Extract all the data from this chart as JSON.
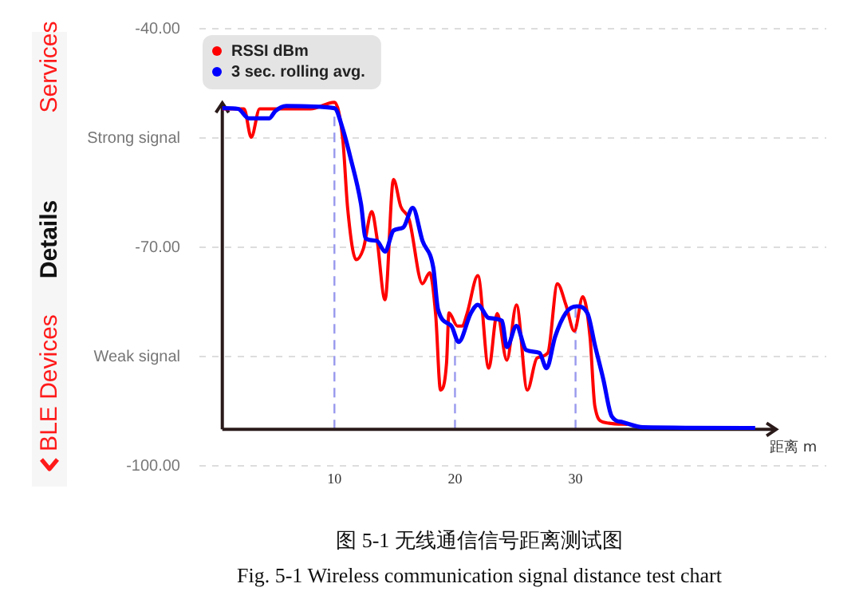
{
  "chart_data": {
    "type": "line",
    "title": "图 5-1  无线通信信号距离测试图",
    "subtitle": "Fig. 5-1 Wireless communication signal distance test chart",
    "xlabel": "距离 m",
    "annotations": [
      "Services",
      "Details",
      "BLE Devices"
    ],
    "xlim": [
      -1.2,
      50.8
    ],
    "xticks": [
      10,
      20,
      30
    ],
    "ylim": [
      -100,
      -40
    ],
    "yticks": [
      {
        "value": -40,
        "label": "-40.00"
      },
      {
        "value": -55,
        "label": "Strong signal"
      },
      {
        "value": -70,
        "label": "-70.00"
      },
      {
        "value": -85,
        "label": "Weak signal"
      },
      {
        "value": -100,
        "label": "-100.00"
      }
    ],
    "grid": "y",
    "legend": "top left",
    "marker": "none",
    "line_style": "solid",
    "ref_lines": [
      {
        "axis": "y",
        "value": -95,
        "label": null,
        "color": "#2a1a1a",
        "line_style": "solid"
      },
      {
        "axis": "x",
        "value": 0.7,
        "label": null,
        "color": "#2a1a1a",
        "line_style": "solid"
      },
      {
        "axis": "x",
        "value": 10,
        "label": null,
        "color": "#9999ee",
        "line_style": "dashed"
      },
      {
        "axis": "x",
        "value": 20,
        "label": null,
        "color": "#9999ee",
        "line_style": "dashed"
      },
      {
        "axis": "x",
        "value": 30,
        "label": null,
        "color": "#9999ee",
        "line_style": "dashed"
      }
    ],
    "series": [
      {
        "name": "RSSI dBm",
        "color": "#ff0000",
        "x": [
          0.7,
          2.5,
          3.1,
          3.8,
          5,
          8,
          10,
          10.7,
          11.1,
          11.8,
          12.4,
          13.1,
          13.5,
          14.2,
          14.9,
          15.5,
          16.2,
          17.3,
          17.9,
          18.4,
          18.8,
          19.3,
          19.5,
          20.2,
          20.6,
          21,
          21.9,
          22.8,
          23.5,
          24.3,
          25.1,
          26,
          26.8,
          27.7,
          28.5,
          29.2,
          29.9,
          30.6,
          31.2,
          31.6,
          32.3,
          34.3
        ],
        "values": [
          -51,
          -51,
          -54.9,
          -51,
          -51,
          -51,
          -50.1,
          -55.3,
          -64.7,
          -71.7,
          -70.2,
          -65.1,
          -68.4,
          -77.2,
          -60.7,
          -64.4,
          -66.2,
          -75,
          -73.5,
          -79.3,
          -89.6,
          -85.9,
          -79,
          -80.8,
          -80.8,
          -79.1,
          -73.9,
          -86.6,
          -79.1,
          -85.5,
          -77.9,
          -89.6,
          -85.2,
          -84.5,
          -75,
          -77.9,
          -81.5,
          -76.8,
          -82.3,
          -91.8,
          -94,
          -94.3
        ]
      },
      {
        "name": "3 sec. rolling avg.",
        "color": "#0000ff",
        "x": [
          0.7,
          2,
          2.9,
          4.6,
          5.1,
          6,
          10,
          10.7,
          11.3,
          12.2,
          12.6,
          13.5,
          14.2,
          14.9,
          15.7,
          16.5,
          17.3,
          18.2,
          18.6,
          19.7,
          20.3,
          21.3,
          21.9,
          22.8,
          23.9,
          24.3,
          25.1,
          25.9,
          27,
          27.6,
          28.3,
          29.2,
          30.1,
          31,
          31.6,
          32.3,
          33,
          33.9,
          35.6,
          44.9
        ],
        "values": [
          -50.9,
          -51,
          -52.3,
          -52.3,
          -51.3,
          -50.6,
          -50.9,
          -53.8,
          -57.5,
          -64,
          -68.8,
          -69.1,
          -70.6,
          -67.7,
          -67.3,
          -64.6,
          -69.1,
          -72.8,
          -78.6,
          -80.8,
          -83,
          -79.1,
          -77.9,
          -79.7,
          -80.1,
          -83.7,
          -80.8,
          -84.1,
          -84.5,
          -86.6,
          -82.3,
          -79,
          -78.1,
          -79.1,
          -83.4,
          -88.1,
          -93.2,
          -94,
          -94.7,
          -94.8
        ]
      }
    ]
  }
}
